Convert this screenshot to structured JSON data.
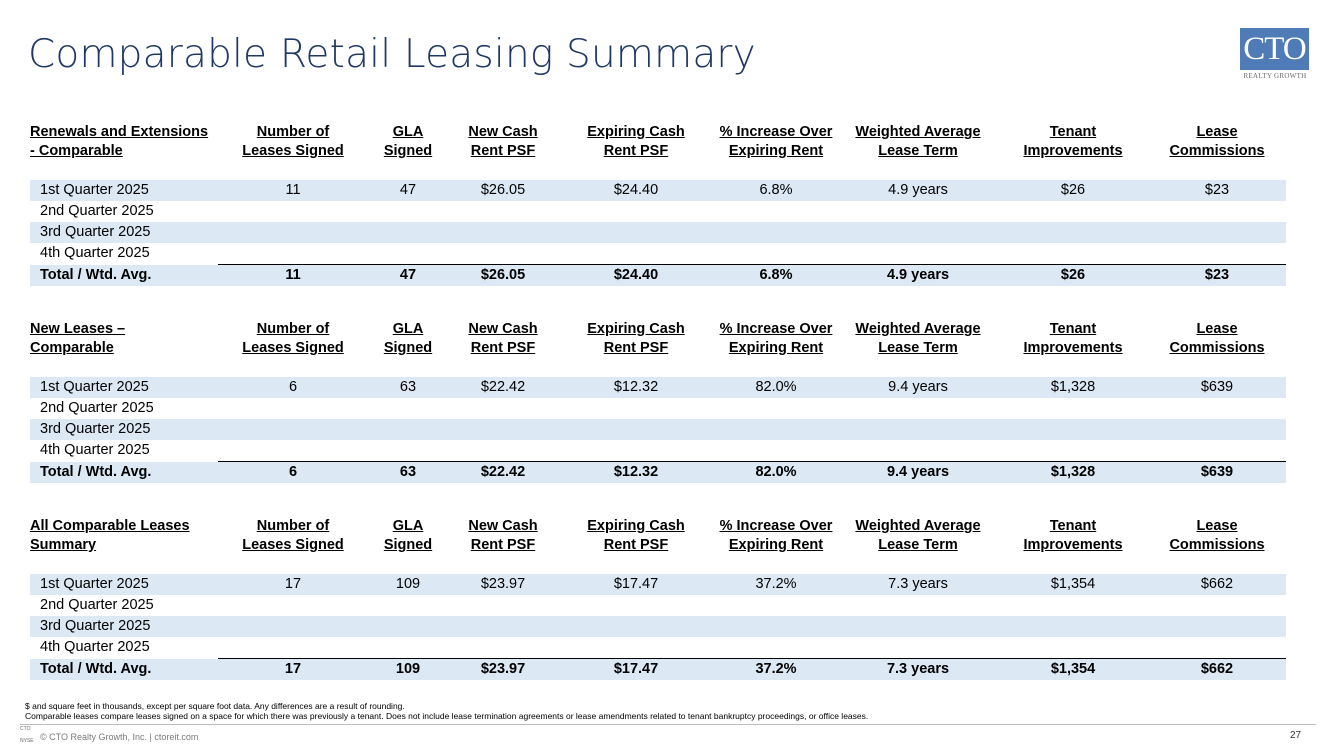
{
  "title": "Comparable Retail Leasing Summary",
  "logo": {
    "text": "CTO",
    "subtext": "REALTY GROWTH"
  },
  "columns": [
    "Number of\nLeases Signed",
    "GLA\nSigned",
    "New Cash\nRent PSF",
    "Expiring Cash\nRent PSF",
    "% Increase Over\nExpiring Rent",
    "Weighted Average\nLease Term",
    "Tenant\nImprovements",
    "Lease\nCommissions"
  ],
  "column_lines": [
    [
      "Number of",
      "Leases Signed"
    ],
    [
      "GLA",
      "Signed"
    ],
    [
      "New Cash",
      "Rent PSF"
    ],
    [
      "Expiring Cash",
      "Rent PSF"
    ],
    [
      "% Increase Over",
      "Expiring Rent"
    ],
    [
      "Weighted Average",
      "Lease Term"
    ],
    [
      "Tenant",
      "Improvements"
    ],
    [
      "Lease",
      "Commissions"
    ]
  ],
  "sections": [
    {
      "heading": [
        "Renewals and Extensions",
        "- Comparable"
      ],
      "rows": [
        {
          "label": "1st Quarter 2025",
          "values": [
            "11",
            "47",
            "$26.05",
            "$24.40",
            "6.8%",
            "4.9 years",
            "$26",
            "$23"
          ]
        },
        {
          "label": "2nd Quarter 2025",
          "values": [
            "",
            "",
            "",
            "",
            "",
            "",
            "",
            ""
          ]
        },
        {
          "label": "3rd Quarter 2025",
          "values": [
            "",
            "",
            "",
            "",
            "",
            "",
            "",
            ""
          ]
        },
        {
          "label": "4th Quarter 2025",
          "values": [
            "",
            "",
            "",
            "",
            "",
            "",
            "",
            ""
          ]
        }
      ],
      "total": {
        "label": "Total / Wtd. Avg.",
        "values": [
          "11",
          "47",
          "$26.05",
          "$24.40",
          "6.8%",
          "4.9 years",
          "$26",
          "$23"
        ]
      }
    },
    {
      "heading": [
        "New Leases –",
        "Comparable"
      ],
      "rows": [
        {
          "label": "1st Quarter 2025",
          "values": [
            "6",
            "63",
            "$22.42",
            "$12.32",
            "82.0%",
            "9.4 years",
            "$1,328",
            "$639"
          ]
        },
        {
          "label": "2nd Quarter 2025",
          "values": [
            "",
            "",
            "",
            "",
            "",
            "",
            "",
            ""
          ]
        },
        {
          "label": "3rd Quarter 2025",
          "values": [
            "",
            "",
            "",
            "",
            "",
            "",
            "",
            ""
          ]
        },
        {
          "label": "4th Quarter 2025",
          "values": [
            "",
            "",
            "",
            "",
            "",
            "",
            "",
            ""
          ]
        }
      ],
      "total": {
        "label": "Total / Wtd. Avg.",
        "values": [
          "6",
          "63",
          "$22.42",
          "$12.32",
          "82.0%",
          "9.4 years",
          "$1,328",
          "$639"
        ]
      }
    },
    {
      "heading": [
        "All Comparable Leases",
        "Summary"
      ],
      "rows": [
        {
          "label": "1st Quarter 2025",
          "values": [
            "17",
            "109",
            "$23.97",
            "$17.47",
            "37.2%",
            "7.3 years",
            "$1,354",
            "$662"
          ]
        },
        {
          "label": "2nd Quarter 2025",
          "values": [
            "",
            "",
            "",
            "",
            "",
            "",
            "",
            ""
          ]
        },
        {
          "label": "3rd Quarter 2025",
          "values": [
            "",
            "",
            "",
            "",
            "",
            "",
            "",
            ""
          ]
        },
        {
          "label": "4th Quarter 2025",
          "values": [
            "",
            "",
            "",
            "",
            "",
            "",
            "",
            ""
          ]
        }
      ],
      "total": {
        "label": "Total / Wtd. Avg.",
        "values": [
          "17",
          "109",
          "$23.97",
          "$17.47",
          "37.2%",
          "7.3 years",
          "$1,354",
          "$662"
        ]
      }
    }
  ],
  "notes": [
    "$ and square feet in thousands, except per square foot data. Any differences are a result of rounding.",
    "Comparable leases compare leases signed on a space for which there was previously a tenant. Does not include lease termination agreements or lease amendments related to tenant bankruptcy proceedings, or office leases."
  ],
  "footer": {
    "logo_lines": [
      "CTO",
      "NYSE"
    ],
    "text": "© CTO Realty Growth, Inc. | ctoreit.com",
    "page": "27"
  },
  "colors": {
    "title": "#1f3864",
    "row_shade": "#dce8f4",
    "logo_bg": "#4f7bb6"
  }
}
